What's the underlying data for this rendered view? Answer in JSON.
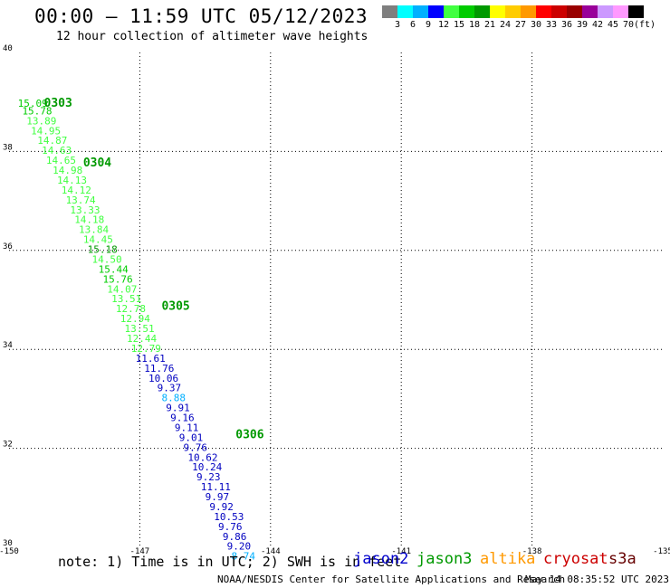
{
  "title": "00:00 – 11:59 UTC 05/12/2023",
  "subtitle": "12 hour collection of altimeter wave heights",
  "colorbar": {
    "colors": [
      "#7f7f7f",
      "#00ffff",
      "#00b0ff",
      "#0000ff",
      "#40ff40",
      "#00cc00",
      "#009900",
      "#ffff00",
      "#ffcc00",
      "#ff9900",
      "#ff0000",
      "#cc0000",
      "#990000",
      "#990099",
      "#cc99ff",
      "#ff99ff",
      "#000000"
    ],
    "labels": [
      "3",
      "6",
      "9",
      "12",
      "15",
      "18",
      "21",
      "24",
      "27",
      "30",
      "33",
      "36",
      "39",
      "42",
      "45",
      "70"
    ],
    "unit": "(ft)"
  },
  "axes": {
    "x_ticks": [
      "-150",
      "-147",
      "-144",
      "-141",
      "-138",
      "-135"
    ],
    "y_ticks": [
      "40",
      "38",
      "36",
      "34",
      "32",
      "30"
    ]
  },
  "map": {
    "lon_range": [
      -150,
      -135
    ],
    "lat_range": [
      30,
      40
    ],
    "grid": "dotted",
    "time_labels": [
      {
        "text": "0303",
        "lon": -149.2,
        "lat": 38.9,
        "color": "#009900"
      },
      {
        "text": "0304",
        "lon": -148.3,
        "lat": 37.7,
        "color": "#009900"
      },
      {
        "text": "0305",
        "lon": -146.5,
        "lat": 34.8,
        "color": "#009900"
      },
      {
        "text": "0306",
        "lon": -144.8,
        "lat": 32.2,
        "color": "#009900"
      }
    ],
    "points": [
      {
        "v": "15.09",
        "lon": -149.8,
        "lat": 38.9,
        "c": "#00cc00"
      },
      {
        "v": "15.78",
        "lon": -149.7,
        "lat": 38.75,
        "c": "#00cc00"
      },
      {
        "v": "13.89",
        "lon": -149.6,
        "lat": 38.55,
        "c": "#40ff40"
      },
      {
        "v": "14.95",
        "lon": -149.5,
        "lat": 38.35,
        "c": "#40ff40"
      },
      {
        "v": "14.87",
        "lon": -149.35,
        "lat": 38.15,
        "c": "#40ff40"
      },
      {
        "v": "14.63",
        "lon": -149.25,
        "lat": 37.95,
        "c": "#40ff40"
      },
      {
        "v": "14.65",
        "lon": -149.15,
        "lat": 37.75,
        "c": "#40ff40"
      },
      {
        "v": "14.98",
        "lon": -149.0,
        "lat": 37.55,
        "c": "#40ff40"
      },
      {
        "v": "14.13",
        "lon": -148.9,
        "lat": 37.35,
        "c": "#40ff40"
      },
      {
        "v": "14.12",
        "lon": -148.8,
        "lat": 37.15,
        "c": "#40ff40"
      },
      {
        "v": "13.74",
        "lon": -148.7,
        "lat": 36.95,
        "c": "#40ff40"
      },
      {
        "v": "13.33",
        "lon": -148.6,
        "lat": 36.75,
        "c": "#40ff40"
      },
      {
        "v": "14.18",
        "lon": -148.5,
        "lat": 36.55,
        "c": "#40ff40"
      },
      {
        "v": "13.84",
        "lon": -148.4,
        "lat": 36.35,
        "c": "#40ff40"
      },
      {
        "v": "14.45",
        "lon": -148.3,
        "lat": 36.15,
        "c": "#40ff40"
      },
      {
        "v": "15.18",
        "lon": -148.2,
        "lat": 35.95,
        "c": "#009900"
      },
      {
        "v": "14.50",
        "lon": -148.1,
        "lat": 35.75,
        "c": "#40ff40"
      },
      {
        "v": "15.44",
        "lon": -147.95,
        "lat": 35.55,
        "c": "#00cc00"
      },
      {
        "v": "15.76",
        "lon": -147.85,
        "lat": 35.35,
        "c": "#00cc00"
      },
      {
        "v": "14.07",
        "lon": -147.75,
        "lat": 35.15,
        "c": "#40ff40"
      },
      {
        "v": "13.51",
        "lon": -147.65,
        "lat": 34.95,
        "c": "#40ff40"
      },
      {
        "v": "12.78",
        "lon": -147.55,
        "lat": 34.75,
        "c": "#40ff40"
      },
      {
        "v": "12.94",
        "lon": -147.45,
        "lat": 34.55,
        "c": "#40ff40"
      },
      {
        "v": "13.51",
        "lon": -147.35,
        "lat": 34.35,
        "c": "#40ff40"
      },
      {
        "v": "12.44",
        "lon": -147.3,
        "lat": 34.15,
        "c": "#40ff40"
      },
      {
        "v": "12.79",
        "lon": -147.2,
        "lat": 33.95,
        "c": "#40ff40"
      },
      {
        "v": "11.61",
        "lon": -147.1,
        "lat": 33.75,
        "c": "#0000c0"
      },
      {
        "v": "11.76",
        "lon": -146.9,
        "lat": 33.55,
        "c": "#0000c0"
      },
      {
        "v": "10.06",
        "lon": -146.8,
        "lat": 33.35,
        "c": "#0000c0"
      },
      {
        "v": "9.37",
        "lon": -146.6,
        "lat": 33.15,
        "c": "#0000c0"
      },
      {
        "v": "8.88",
        "lon": -146.5,
        "lat": 32.95,
        "c": "#00b0ff"
      },
      {
        "v": "9.91",
        "lon": -146.4,
        "lat": 32.75,
        "c": "#0000c0"
      },
      {
        "v": "9.16",
        "lon": -146.3,
        "lat": 32.55,
        "c": "#0000c0"
      },
      {
        "v": "9.11",
        "lon": -146.2,
        "lat": 32.35,
        "c": "#0000c0"
      },
      {
        "v": "9.01",
        "lon": -146.1,
        "lat": 32.15,
        "c": "#0000c0"
      },
      {
        "v": "9.76",
        "lon": -146.0,
        "lat": 31.95,
        "c": "#0000c0"
      },
      {
        "v": "10.62",
        "lon": -145.9,
        "lat": 31.75,
        "c": "#0000c0"
      },
      {
        "v": "10.24",
        "lon": -145.8,
        "lat": 31.55,
        "c": "#0000c0"
      },
      {
        "v": "9.23",
        "lon": -145.7,
        "lat": 31.35,
        "c": "#0000c0"
      },
      {
        "v": "11.11",
        "lon": -145.6,
        "lat": 31.15,
        "c": "#0000c0"
      },
      {
        "v": "9.97",
        "lon": -145.5,
        "lat": 30.95,
        "c": "#0000c0"
      },
      {
        "v": "9.92",
        "lon": -145.4,
        "lat": 30.75,
        "c": "#0000c0"
      },
      {
        "v": "10.53",
        "lon": -145.3,
        "lat": 30.55,
        "c": "#0000c0"
      },
      {
        "v": "9.76",
        "lon": -145.2,
        "lat": 30.35,
        "c": "#0000c0"
      },
      {
        "v": "9.86",
        "lon": -145.1,
        "lat": 30.15,
        "c": "#0000c0"
      },
      {
        "v": "9.20",
        "lon": -145.0,
        "lat": 29.95,
        "c": "#0000c0"
      },
      {
        "v": "8.74",
        "lon": -144.9,
        "lat": 29.75,
        "c": "#00b0ff"
      }
    ]
  },
  "note": "note: 1) Time is in UTC; 2) SWH is in feet",
  "satellites": [
    {
      "name": "jason2",
      "color": "#0000cc"
    },
    {
      "name": "jason3",
      "color": "#009900"
    },
    {
      "name": "altika",
      "color": "#ff9900"
    },
    {
      "name": "cryosat",
      "color": "#cc0000"
    },
    {
      "name": "s3a",
      "color": "#660000"
    }
  ],
  "footer": {
    "credit": "NOAA/NESDIS Center for Satellite Applications and Research",
    "timestamp": "May 14 08:35:52 UTC 2023"
  }
}
